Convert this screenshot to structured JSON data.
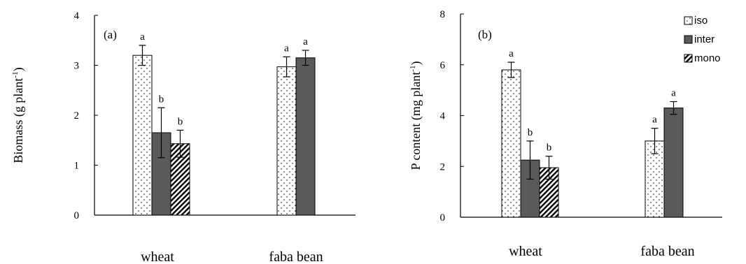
{
  "colors": {
    "axis": "#000000",
    "inter_fill": "#5a5a5a",
    "bar_stroke": "#000000",
    "background": "#ffffff"
  },
  "legend": {
    "placement": "top-right of panel (b)",
    "items": [
      "iso",
      "inter",
      "mono"
    ]
  },
  "chart_data": [
    {
      "type": "bar",
      "panel_label": "(a)",
      "ylabel": "Biomass (g plant",
      "ylabel_sup": "-1",
      "ylabel_end": ")",
      "ylim": [
        0,
        4
      ],
      "yticks": [
        0,
        1,
        2,
        3,
        4
      ],
      "grid": false,
      "categories": [
        "wheat",
        "faba bean"
      ],
      "series": [
        {
          "name": "iso",
          "pattern": "dots",
          "values": [
            3.2,
            2.97
          ],
          "errors": [
            0.2,
            0.2
          ],
          "letters": [
            "a",
            "a"
          ]
        },
        {
          "name": "inter",
          "pattern": "solid",
          "values": [
            1.65,
            3.15
          ],
          "errors": [
            0.5,
            0.15
          ],
          "letters": [
            "b",
            "a"
          ]
        },
        {
          "name": "mono",
          "pattern": "hatch",
          "values": [
            1.43,
            null
          ],
          "errors": [
            0.27,
            null
          ],
          "letters": [
            "b",
            null
          ]
        }
      ]
    },
    {
      "type": "bar",
      "panel_label": "(b)",
      "ylabel": "P content (mg plant",
      "ylabel_sup": "-1",
      "ylabel_end": ")",
      "ylim": [
        0,
        8
      ],
      "yticks": [
        0,
        2,
        4,
        6,
        8
      ],
      "grid": false,
      "categories": [
        "wheat",
        "faba bean"
      ],
      "series": [
        {
          "name": "iso",
          "pattern": "dots",
          "values": [
            5.8,
            3.0
          ],
          "errors": [
            0.3,
            0.5
          ],
          "letters": [
            "a",
            "a"
          ]
        },
        {
          "name": "inter",
          "pattern": "solid",
          "values": [
            2.25,
            4.3
          ],
          "errors": [
            0.75,
            0.25
          ],
          "letters": [
            "b",
            "a"
          ]
        },
        {
          "name": "mono",
          "pattern": "hatch",
          "values": [
            1.95,
            null
          ],
          "errors": [
            0.45,
            null
          ],
          "letters": [
            "b",
            null
          ]
        }
      ]
    }
  ]
}
